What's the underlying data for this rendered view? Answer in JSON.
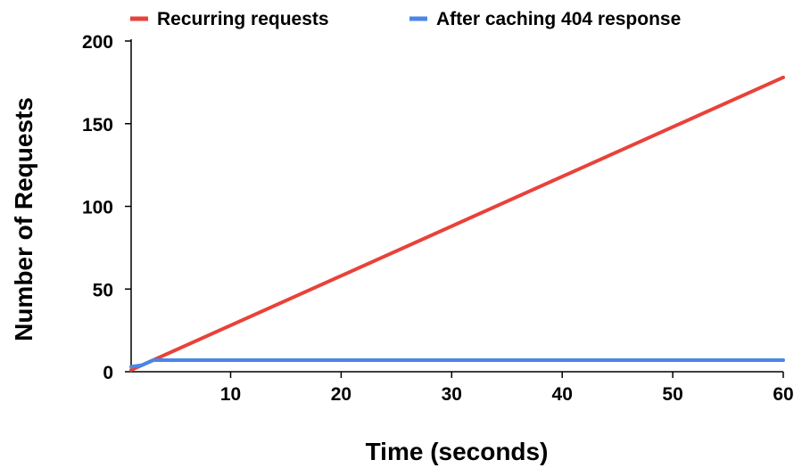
{
  "chart_data": {
    "type": "line",
    "title": "",
    "xlabel": "Time (seconds)",
    "ylabel": "Number of Requests",
    "xlim": [
      1,
      60
    ],
    "ylim": [
      0,
      200
    ],
    "x_ticks": [
      10,
      20,
      30,
      40,
      50,
      60
    ],
    "y_ticks": [
      0,
      50,
      100,
      150,
      200
    ],
    "grid": false,
    "legend_position": "top",
    "series": [
      {
        "name": "Recurring requests",
        "color": "#e8423a",
        "x": [
          1,
          60
        ],
        "y": [
          1,
          178
        ]
      },
      {
        "name": "After caching 404 response",
        "color": "#4a86e8",
        "x": [
          1,
          2,
          3,
          60
        ],
        "y": [
          3,
          4,
          7,
          7
        ]
      }
    ]
  }
}
